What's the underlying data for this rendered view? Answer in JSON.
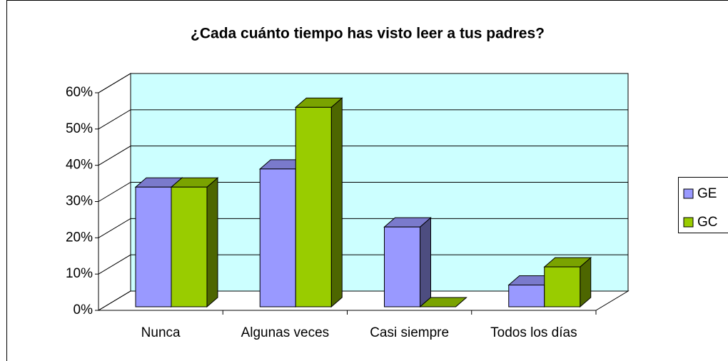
{
  "chart_data": {
    "type": "bar3d",
    "title": "¿Cada cuánto tiempo has visto leer a tus padres?",
    "categories": [
      "Nunca",
      "Algunas veces",
      "Casi siempre",
      "Todos los días"
    ],
    "series": [
      {
        "name": "GE",
        "color": "#9999ff",
        "values": [
          33,
          38,
          22,
          6
        ]
      },
      {
        "name": "GC",
        "color": "#99cc00",
        "values": [
          33,
          55,
          0,
          11
        ]
      }
    ],
    "ylim": [
      0,
      60
    ],
    "yticks": [
      {
        "value": 0,
        "label": "0%"
      },
      {
        "value": 10,
        "label": "10%"
      },
      {
        "value": 20,
        "label": "20%"
      },
      {
        "value": 30,
        "label": "30%"
      },
      {
        "value": 40,
        "label": "40%"
      },
      {
        "value": 50,
        "label": "50%"
      },
      {
        "value": 60,
        "label": "60%"
      }
    ],
    "grid": true,
    "legend": "right",
    "wall_color": "#ccffff"
  }
}
